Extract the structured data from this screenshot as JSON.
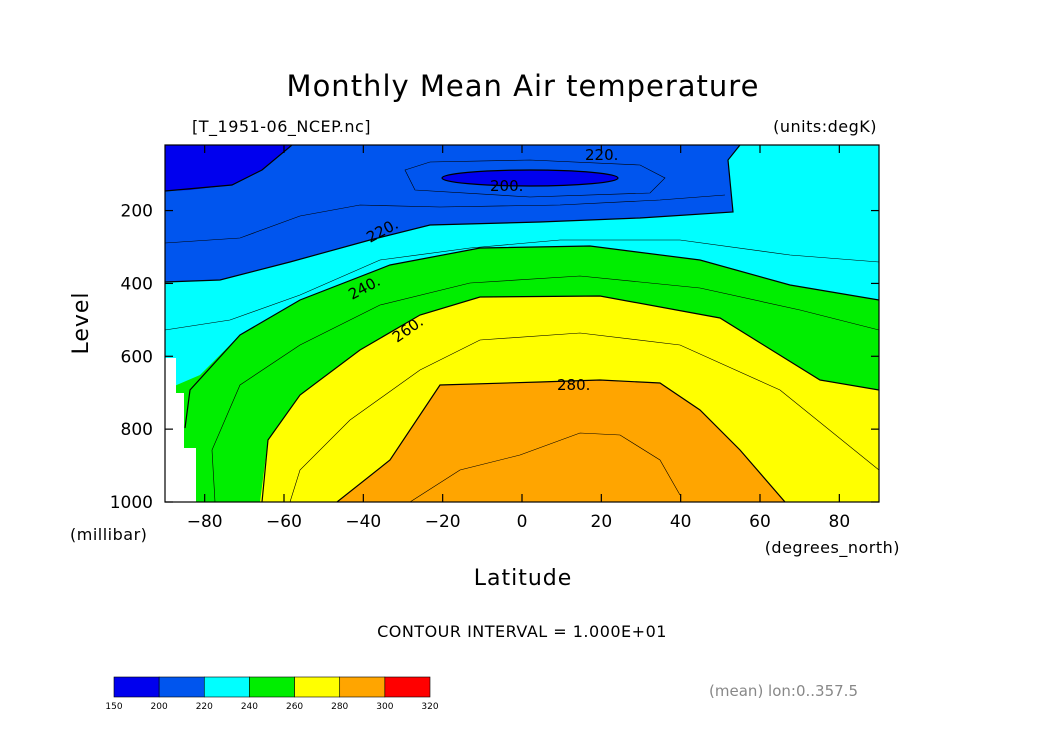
{
  "chart_data": {
    "type": "contour",
    "title": "Monthly Mean Air temperature",
    "dataset": "[T_1951-06_NCEP.nc]",
    "units": "(units:degK)",
    "xlabel": "Latitude",
    "x_units": "(degrees_north)",
    "ylabel": "Level",
    "y_units": "(millibar)",
    "xlim": [
      -90,
      90
    ],
    "ylim": [
      1000,
      20
    ],
    "x_ticks": [
      -80,
      -60,
      -40,
      -20,
      0,
      20,
      40,
      60,
      80
    ],
    "y_ticks": [
      200,
      400,
      600,
      800,
      1000
    ],
    "contour_interval": "CONTOUR INTERVAL = 1.000E+01",
    "contour_labels": [
      "200.",
      "220.",
      "220.",
      "240.",
      "260.",
      "280."
    ],
    "colorbar": {
      "levels": [
        150,
        200,
        220,
        240,
        260,
        280,
        300,
        320
      ],
      "colors": [
        "#0000ee",
        "#0055ee",
        "#00ffff",
        "#00ee00",
        "#ffff00",
        "#ffa500",
        "#ff0000"
      ]
    },
    "footnote": "(mean) lon:0..357.5"
  }
}
